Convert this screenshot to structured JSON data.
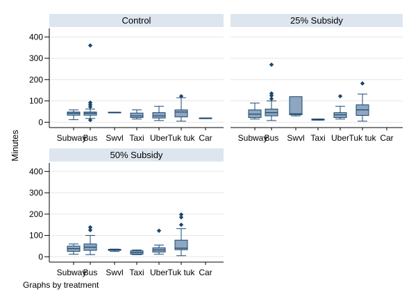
{
  "chart_data": {
    "type": "box",
    "ylabel": "Minutes",
    "note": "Graphs by treatment",
    "categories": [
      "Subway",
      "Bus",
      "Swvl",
      "Taxi",
      "Uber",
      "Tuk tuk",
      "Car"
    ],
    "yticks": [
      0,
      100,
      200,
      300,
      400
    ],
    "ylim": [
      -25,
      440
    ],
    "grid": true,
    "colors": {
      "box_fill": "#8ea6bf",
      "box_stroke": "#1a476f",
      "strip_bg": "#dde6ee",
      "grid": "#e6e6e6"
    },
    "panels": [
      {
        "title": "Control",
        "boxes": [
          {
            "category": "Subway",
            "q1": 33,
            "median": 42,
            "q3": 48,
            "low": 12,
            "high": 58,
            "outliers": []
          },
          {
            "category": "Bus",
            "q1": 33,
            "median": 42,
            "q3": 48,
            "low": 18,
            "high": 62,
            "outliers": [
              360,
              92,
              82,
              72,
              10
            ]
          },
          {
            "category": "Swvl",
            "q1": 45,
            "median": 46,
            "q3": 47,
            "low": 45,
            "high": 47,
            "outliers": []
          },
          {
            "category": "Taxi",
            "q1": 22,
            "median": 30,
            "q3": 43,
            "low": 15,
            "high": 58,
            "outliers": []
          },
          {
            "category": "Uber",
            "q1": 20,
            "median": 30,
            "q3": 45,
            "low": 8,
            "high": 75,
            "outliers": []
          },
          {
            "category": "Tuk tuk",
            "q1": 25,
            "median": 48,
            "q3": 58,
            "low": 5,
            "high": 115,
            "outliers": [
              122
            ]
          },
          {
            "category": "Car",
            "q1": 18,
            "median": 19,
            "q3": 20,
            "low": 18,
            "high": 20,
            "outliers": []
          }
        ]
      },
      {
        "title": "25% Subsidy",
        "boxes": [
          {
            "category": "Subway",
            "q1": 22,
            "median": 38,
            "q3": 58,
            "low": 15,
            "high": 90,
            "outliers": []
          },
          {
            "category": "Bus",
            "q1": 30,
            "median": 45,
            "q3": 62,
            "low": 8,
            "high": 100,
            "outliers": [
              270,
              135,
              125,
              110
            ]
          },
          {
            "category": "Swvl",
            "q1": 35,
            "median": 40,
            "q3": 120,
            "low": 30,
            "high": 120,
            "outliers": []
          },
          {
            "category": "Taxi",
            "q1": 10,
            "median": 12,
            "q3": 15,
            "low": 10,
            "high": 15,
            "outliers": []
          },
          {
            "category": "Uber",
            "q1": 22,
            "median": 35,
            "q3": 45,
            "low": 15,
            "high": 75,
            "outliers": [
              122
            ]
          },
          {
            "category": "Tuk tuk",
            "q1": 32,
            "median": 58,
            "q3": 82,
            "low": 5,
            "high": 132,
            "outliers": [
              182
            ]
          },
          {
            "category": "Car",
            "q1": null,
            "median": null,
            "q3": null,
            "low": null,
            "high": null,
            "outliers": []
          }
        ]
      },
      {
        "title": "50% Subsidy",
        "boxes": [
          {
            "category": "Subway",
            "q1": 25,
            "median": 38,
            "q3": 50,
            "low": 12,
            "high": 60,
            "outliers": []
          },
          {
            "category": "Bus",
            "q1": 30,
            "median": 45,
            "q3": 60,
            "low": 10,
            "high": 100,
            "outliers": [
              138,
              125
            ]
          },
          {
            "category": "Swvl",
            "q1": 30,
            "median": 32,
            "q3": 35,
            "low": 25,
            "high": 36,
            "outliers": []
          },
          {
            "category": "Taxi",
            "q1": 12,
            "median": 20,
            "q3": 28,
            "low": 10,
            "high": 32,
            "outliers": []
          },
          {
            "category": "Uber",
            "q1": 22,
            "median": 32,
            "q3": 42,
            "low": 12,
            "high": 55,
            "outliers": [
              122
            ]
          },
          {
            "category": "Tuk tuk",
            "q1": 33,
            "median": 40,
            "q3": 78,
            "low": 5,
            "high": 132,
            "outliers": [
              198,
              185,
              150
            ]
          },
          {
            "category": "Car",
            "q1": null,
            "median": null,
            "q3": null,
            "low": null,
            "high": null,
            "outliers": []
          }
        ]
      }
    ]
  }
}
